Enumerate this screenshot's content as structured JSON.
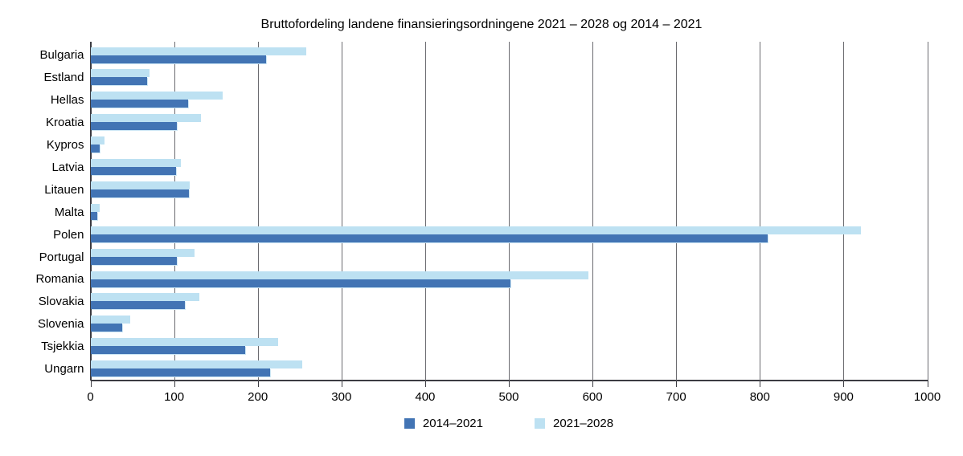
{
  "title": "Bruttofordeling landene finansieringsordningene 2021 – 2028 og 2014 – 2021",
  "chart_data": {
    "type": "bar",
    "orientation": "horizontal",
    "title": "Bruttofordeling landene finansieringsordningene 2021 – 2028 og 2014 – 2021",
    "categories": [
      "Bulgaria",
      "Estland",
      "Hellas",
      "Kroatia",
      "Kypros",
      "Latvia",
      "Litauen",
      "Malta",
      "Polen",
      "Portugal",
      "Romania",
      "Slovakia",
      "Slovenia",
      "Tsjekkia",
      "Ungarn"
    ],
    "series": [
      {
        "name": "2014–2021",
        "color": "#4274b4",
        "values": [
          210,
          68,
          117,
          103,
          11.5,
          102,
          118,
          8,
          809,
          103,
          502,
          113,
          38,
          185,
          215
        ]
      },
      {
        "name": "2021–2028",
        "color": "#bde1f2",
        "values": [
          258,
          71,
          158,
          132,
          17,
          108,
          119,
          11,
          921,
          124,
          595,
          130,
          48,
          224,
          253
        ]
      }
    ],
    "xlim": [
      0,
      1000
    ],
    "x_ticks": [
      0,
      100,
      200,
      300,
      400,
      500,
      600,
      700,
      800,
      900,
      1000
    ],
    "grid": "vertical",
    "legend_position": "bottom",
    "colors": {
      "gridline": "#6b6b70",
      "axis": "#3c3c42",
      "text": "#000000"
    }
  }
}
